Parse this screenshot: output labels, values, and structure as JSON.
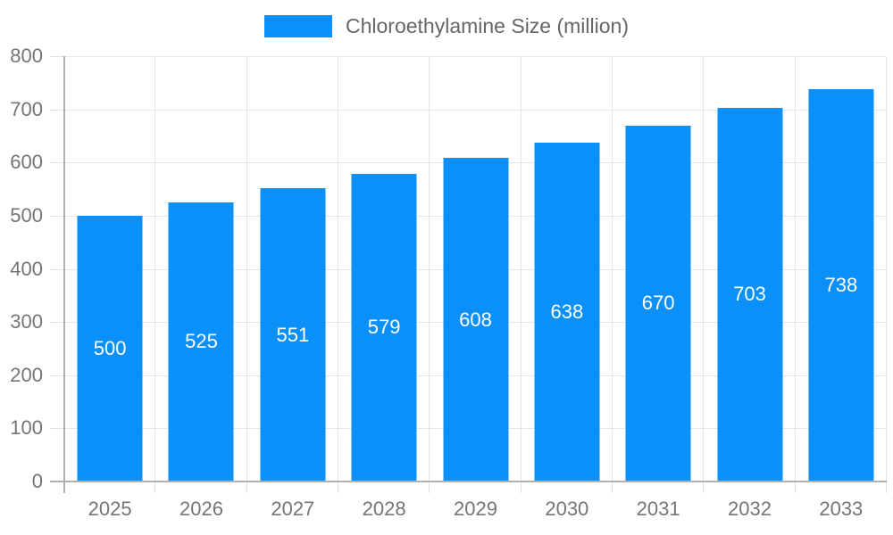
{
  "chart_data": {
    "type": "bar",
    "title": "",
    "series_name": "Chloroethylamine Size (million)",
    "categories": [
      "2025",
      "2026",
      "2027",
      "2028",
      "2029",
      "2030",
      "2031",
      "2032",
      "2033"
    ],
    "values": [
      500,
      525,
      551,
      579,
      608,
      638,
      670,
      703,
      738
    ],
    "xlabel": "",
    "ylabel": "",
    "ylim": [
      0,
      800
    ],
    "yticks": [
      0,
      100,
      200,
      300,
      400,
      500,
      600,
      700,
      800
    ],
    "grid": true,
    "legend_position": "top-center",
    "bar_color": "#0a90f8",
    "value_label_color": "#ffffff",
    "grid_color": "#e6e6e6",
    "axis_color": "#b0b0b0",
    "tick_label_color": "#757575",
    "legend_text_color": "#666666"
  }
}
